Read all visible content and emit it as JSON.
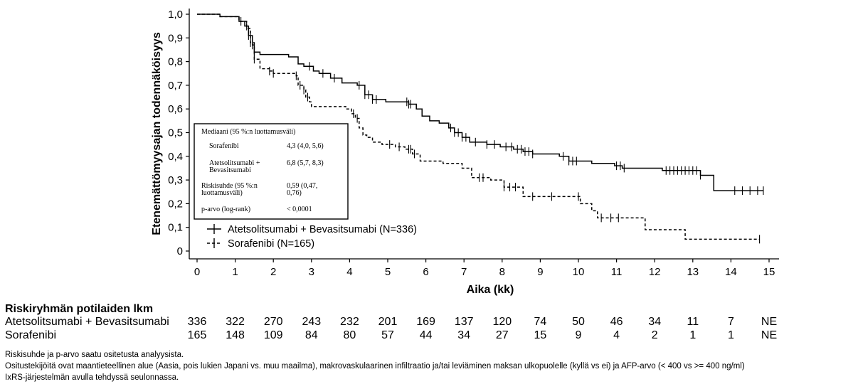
{
  "chart_data": {
    "type": "line",
    "subtype": "kaplan-meier",
    "xlabel": "Aika (kk)",
    "ylabel": "Etenemättömyysajan todennäköisyys",
    "xlim": [
      0,
      15
    ],
    "ylim": [
      0,
      1
    ],
    "x_ticks": [
      "0",
      "1",
      "2",
      "3",
      "4",
      "5",
      "6",
      "7",
      "8",
      "9",
      "10",
      "11",
      "12",
      "13",
      "14",
      "15"
    ],
    "y_ticks": [
      "0",
      "0,1",
      "0,2",
      "0,3",
      "0,4",
      "0,5",
      "0,6",
      "0,7",
      "0,8",
      "0,9",
      "1,0"
    ],
    "grid": false,
    "legend_position": "bottom-left",
    "series": [
      {
        "name": "Atetsolitsumabi + Bevasitsumabi (N=336)",
        "line_style": "solid",
        "color": "#000000",
        "x": [
          0,
          0.6,
          1.1,
          1.25,
          1.35,
          1.45,
          1.5,
          1.65,
          2.4,
          2.65,
          2.8,
          3.05,
          3.2,
          3.5,
          3.8,
          4.2,
          4.4,
          4.6,
          4.95,
          5.55,
          5.75,
          5.9,
          6.1,
          6.35,
          6.6,
          6.75,
          6.95,
          7.15,
          7.6,
          7.95,
          8.3,
          8.55,
          8.8,
          9.5,
          9.75,
          10.35,
          10.95,
          11.15,
          12.2,
          12.8,
          13.2,
          13.55,
          14.85
        ],
        "y": [
          1.0,
          0.99,
          0.97,
          0.95,
          0.91,
          0.87,
          0.84,
          0.83,
          0.82,
          0.79,
          0.78,
          0.76,
          0.75,
          0.73,
          0.71,
          0.7,
          0.66,
          0.64,
          0.63,
          0.62,
          0.6,
          0.57,
          0.55,
          0.54,
          0.52,
          0.5,
          0.48,
          0.46,
          0.45,
          0.44,
          0.43,
          0.42,
          0.41,
          0.4,
          0.38,
          0.37,
          0.36,
          0.35,
          0.34,
          0.34,
          0.32,
          0.255,
          0.255
        ],
        "censor_x": [
          1.15,
          1.3,
          1.35,
          1.4,
          1.45,
          1.5,
          2.95,
          3.3,
          3.6,
          4.25,
          4.4,
          4.5,
          4.6,
          4.7,
          5.5,
          5.55,
          5.6,
          6.65,
          6.75,
          6.85,
          6.95,
          7.05,
          7.3,
          7.6,
          7.8,
          8.1,
          8.25,
          8.4,
          8.5,
          8.6,
          8.7,
          8.8,
          9.6,
          9.75,
          9.85,
          9.95,
          11.0,
          11.1,
          11.2,
          12.3,
          12.4,
          12.5,
          12.6,
          12.7,
          12.8,
          12.9,
          13.0,
          13.1,
          13.2,
          14.1,
          14.3,
          14.5,
          14.7,
          14.85
        ]
      },
      {
        "name": "Sorafenibi (N=165)",
        "line_style": "dashed",
        "color": "#000000",
        "x": [
          0,
          0.6,
          1.1,
          1.3,
          1.4,
          1.5,
          1.65,
          1.9,
          2.0,
          2.2,
          2.6,
          2.65,
          2.8,
          2.85,
          2.95,
          3.0,
          3.9,
          4.05,
          4.15,
          4.25,
          4.35,
          4.45,
          4.6,
          4.85,
          5.2,
          5.45,
          5.65,
          5.85,
          6.45,
          6.95,
          7.2,
          7.7,
          8.05,
          8.55,
          10.05,
          10.15,
          10.35,
          10.5,
          10.75,
          11.75,
          12.8,
          14.75
        ],
        "y": [
          1.0,
          0.99,
          0.97,
          0.94,
          0.88,
          0.81,
          0.77,
          0.76,
          0.75,
          0.75,
          0.74,
          0.7,
          0.68,
          0.65,
          0.63,
          0.61,
          0.6,
          0.58,
          0.56,
          0.52,
          0.49,
          0.48,
          0.46,
          0.45,
          0.44,
          0.43,
          0.41,
          0.38,
          0.37,
          0.35,
          0.31,
          0.3,
          0.27,
          0.23,
          0.2,
          0.2,
          0.17,
          0.14,
          0.14,
          0.09,
          0.05,
          0.05
        ],
        "censor_x": [
          1.4,
          1.5,
          1.9,
          2.0,
          2.6,
          2.7,
          2.8,
          2.9,
          4.1,
          4.2,
          5.05,
          5.3,
          5.55,
          5.6,
          5.7,
          7.4,
          7.5,
          8.05,
          8.2,
          8.35,
          8.8,
          9.3,
          10.0,
          10.6,
          10.85,
          11.05,
          14.75
        ]
      }
    ]
  },
  "stats_box": {
    "title": "Mediaani (95 %:n luottamusväli)",
    "rows": [
      {
        "label_1": "Sorafenibi",
        "label_2": "",
        "value_1": "4,3 (4,0, 5,6)",
        "value_2": ""
      },
      {
        "label_1": "Atetsolitsumabi +",
        "label_2": "Bevasitsumabi",
        "value_1": "6,8 (5,7, 8,3)",
        "value_2": ""
      },
      {
        "label_1": "Riskisuhde (95 %:n",
        "label_2": "luottamusväli)",
        "value_1": "0,59 (0,47,",
        "value_2": "0,76)"
      },
      {
        "label_1": "p-arvo (log-rank)",
        "label_2": "",
        "value_1": "< 0,0001",
        "value_2": ""
      }
    ]
  },
  "risk_table": {
    "title": "Riskiryhmän potilaiden lkm",
    "rows": [
      {
        "label": "Atetsolitsumabi + Bevasitsumabi",
        "values": [
          "336",
          "322",
          "270",
          "243",
          "232",
          "201",
          "169",
          "137",
          "120",
          "74",
          "50",
          "46",
          "34",
          "11",
          "7",
          "NE"
        ]
      },
      {
        "label": "Sorafenibi",
        "values": [
          "165",
          "148",
          "109",
          "84",
          "80",
          "57",
          "44",
          "34",
          "27",
          "15",
          "9",
          "4",
          "2",
          "1",
          "1",
          "NE"
        ]
      }
    ]
  },
  "footnotes": [
    "Riskisuhde ja p-arvo saatu ositetusta analyysista.",
    "Ositustekijöitä ovat maantieteellinen alue (Aasia, pois lukien Japani vs. muu maailma), makrovaskulaarinen infiltraatio ja/tai leviäminen maksan ulkopuolelle (kyllä vs ei) ja AFP-arvo (< 400 vs >= 400 ng/ml)",
    "IxRS-järjestelmän avulla tehdyssä seulonnassa."
  ]
}
